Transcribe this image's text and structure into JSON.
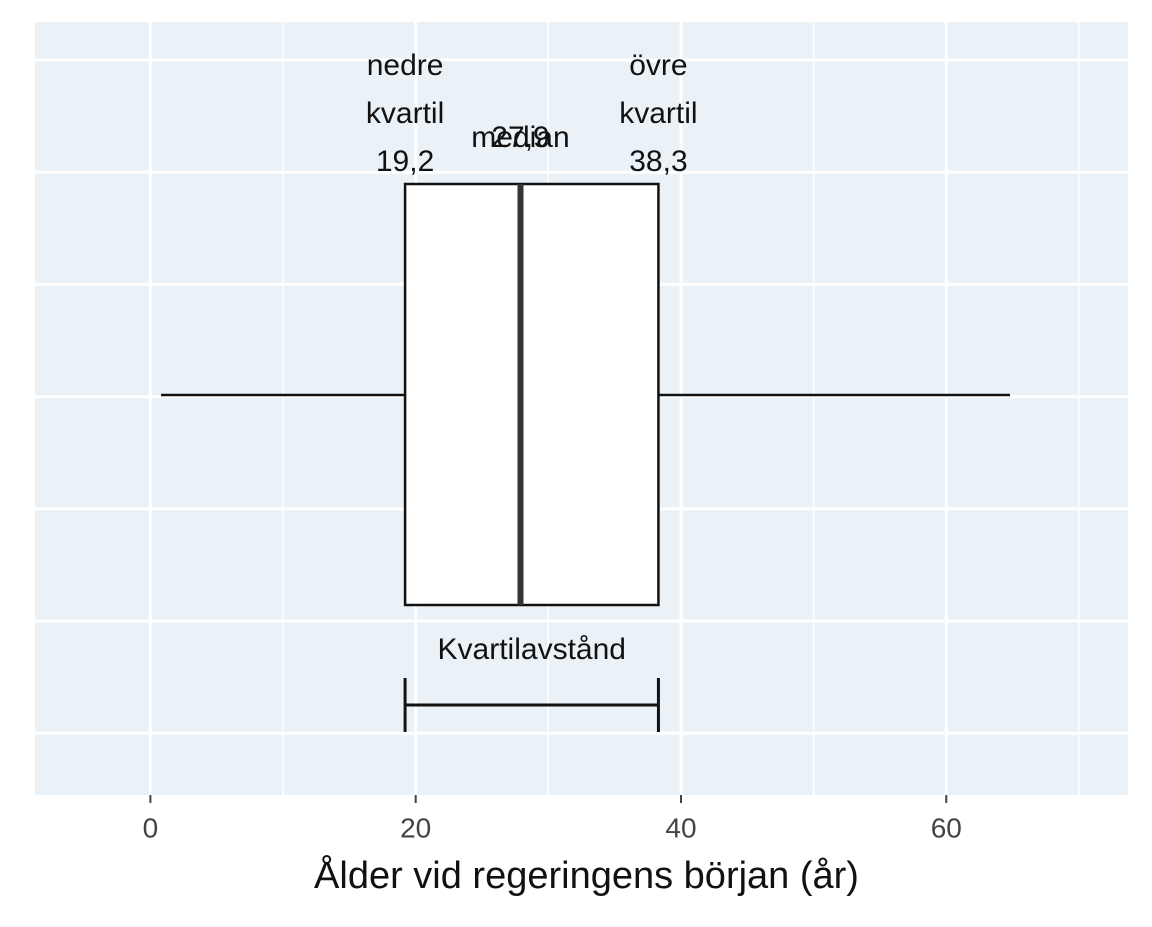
{
  "chart_data": {
    "type": "box",
    "xlabel": "Ålder vid regeringens början (år)",
    "xlim": [
      -8.7,
      73.7
    ],
    "xticks": [
      0,
      20,
      40,
      60
    ],
    "minor_xticks": [
      10,
      30,
      50,
      70
    ],
    "grid": true,
    "background": "#ebf2f7",
    "color": "#ffffff",
    "min": 0.8,
    "q1": 19.2,
    "median": 27.9,
    "q3": 38.3,
    "max": 64.8,
    "value_labels": {
      "q1": "19,2",
      "median": "27,9",
      "q3": "38,3"
    },
    "annotations": {
      "q1": [
        "nedre",
        "kvartil"
      ],
      "median": [
        "median"
      ],
      "q3": [
        "övre",
        "kvartil"
      ]
    },
    "iqr_label": "Kvartilavstånd"
  }
}
